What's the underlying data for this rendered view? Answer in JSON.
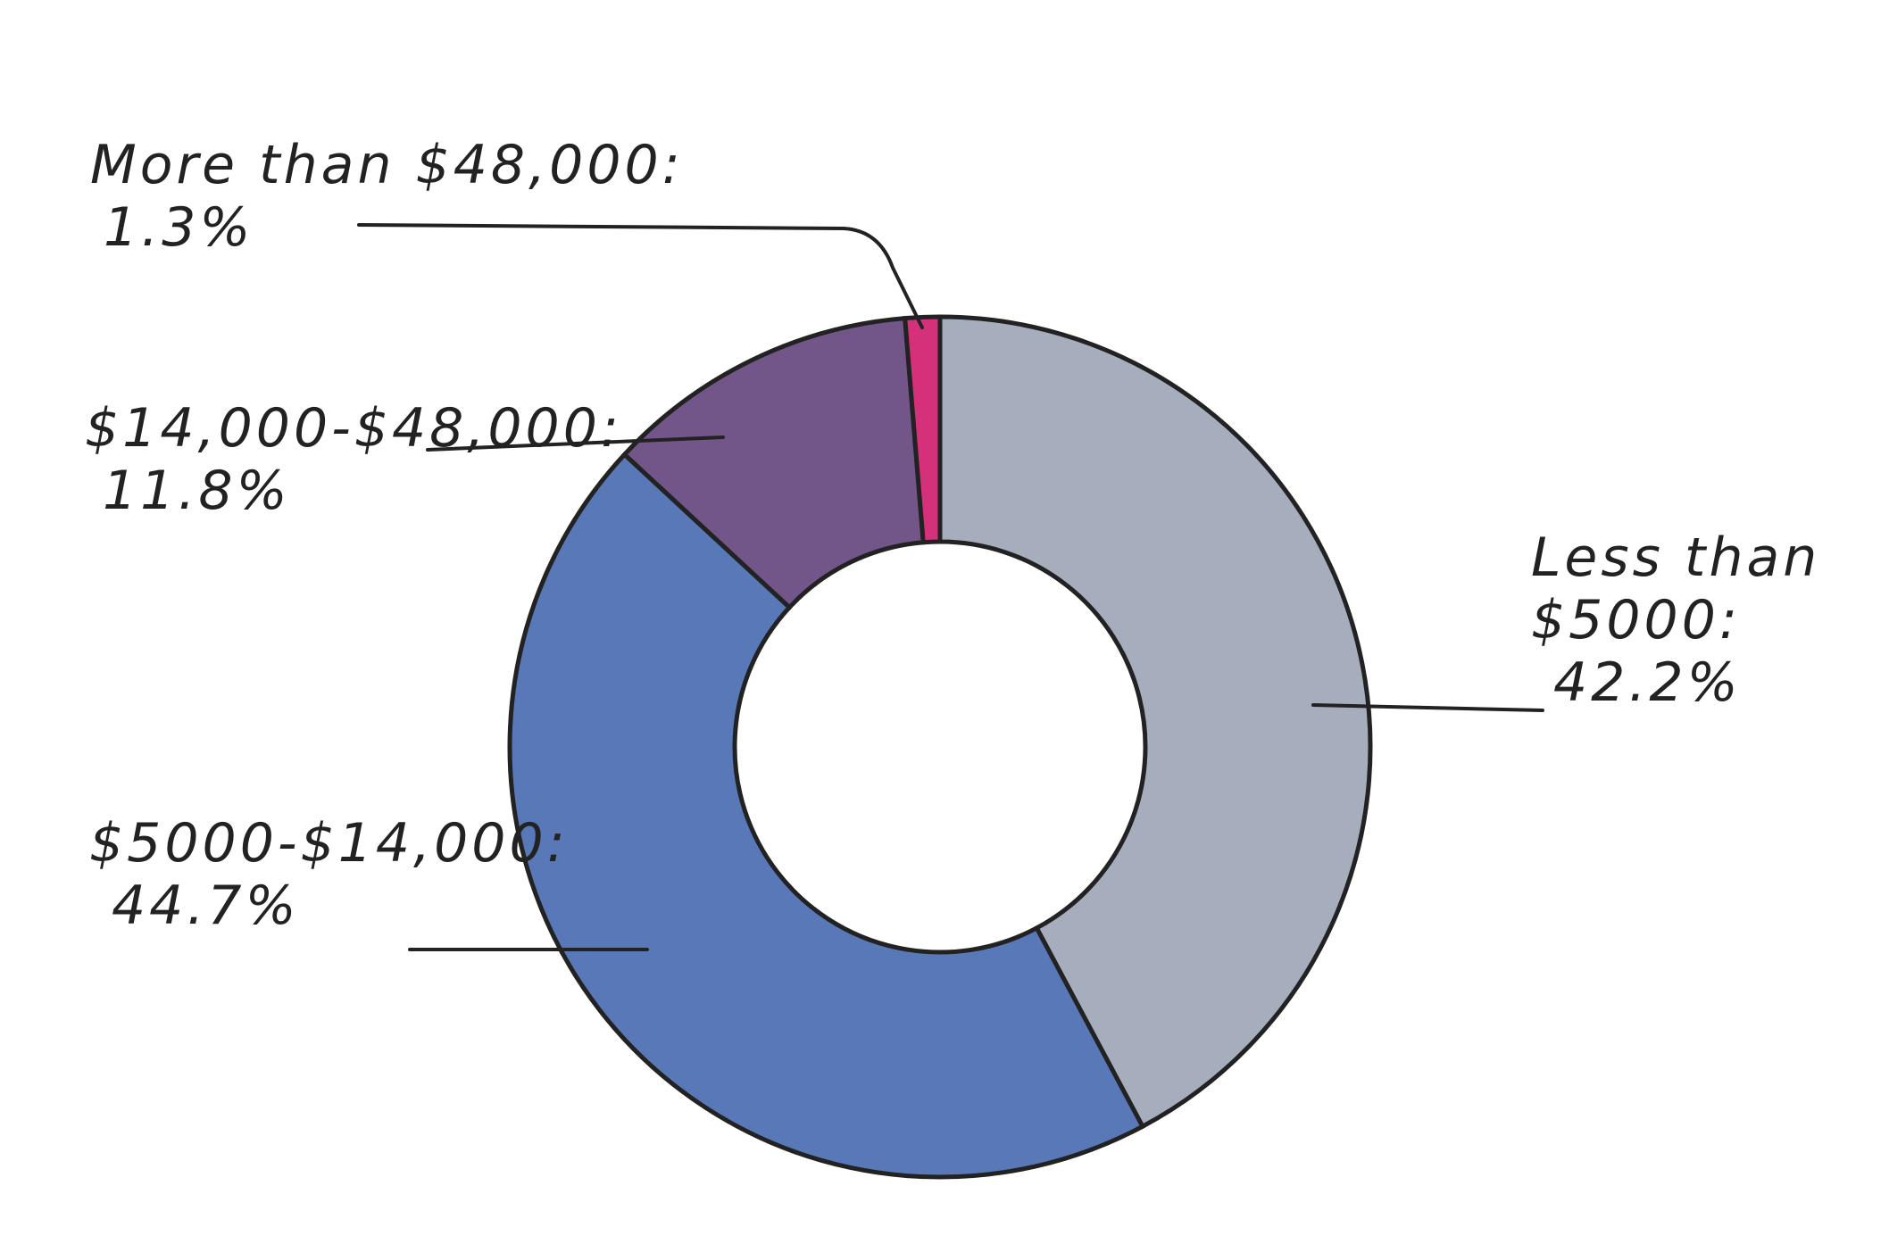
{
  "chart_data": {
    "type": "donut",
    "categories": [
      "Less than $5000:",
      "$5000-$14,000:",
      "$14,000-$48,000:",
      "More than $48,000:"
    ],
    "values": [
      42.2,
      44.7,
      11.8,
      1.3
    ],
    "value_labels": [
      "42.2%",
      "44.7%",
      "11.8%",
      "1.3%"
    ],
    "colors": [
      "#a6adbd",
      "#5878b8",
      "#735689",
      "#d4317a"
    ]
  }
}
